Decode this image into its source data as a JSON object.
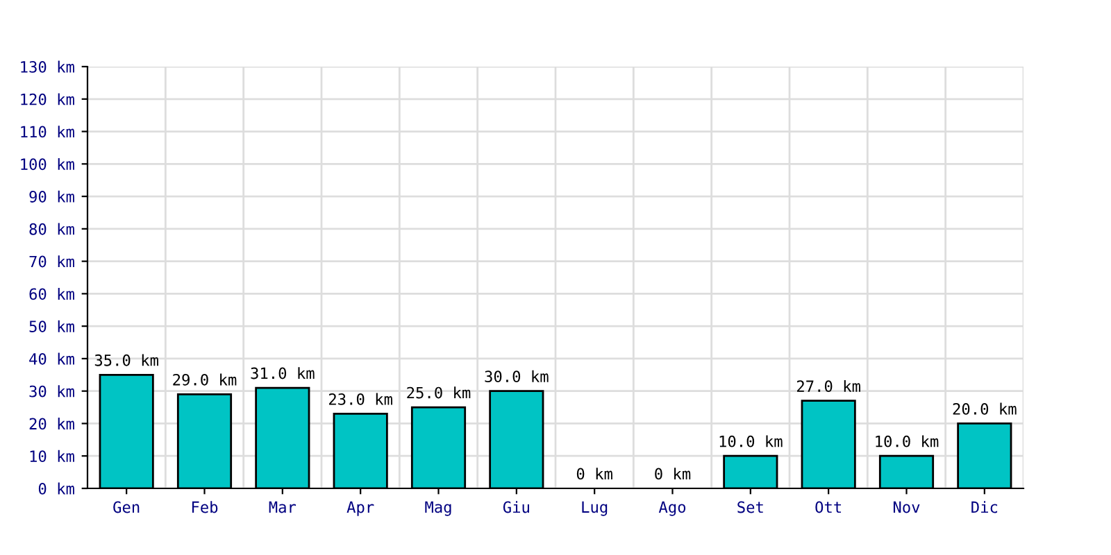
{
  "chart_data": {
    "type": "bar",
    "categories": [
      "Gen",
      "Feb",
      "Mar",
      "Apr",
      "Mag",
      "Giu",
      "Lug",
      "Ago",
      "Set",
      "Ott",
      "Nov",
      "Dic"
    ],
    "values": [
      35,
      29,
      31,
      23,
      25,
      30,
      0,
      0,
      10,
      27,
      10,
      20
    ],
    "color": "#00c4c4",
    "value_labels": [
      "35.0 km",
      "29.0 km",
      "31.0 km",
      "23.0 km",
      "25.0 km",
      "30.0 km",
      "0 km",
      "0 km",
      "10.0 km",
      "27.0 km",
      "10.0 km",
      "20.0 km"
    ],
    "ylim": [
      0,
      130
    ],
    "yticks": [
      {
        "value": 0,
        "label": "0 km"
      },
      {
        "value": 10,
        "label": "10 km"
      },
      {
        "value": 20,
        "label": "20 km"
      },
      {
        "value": 30,
        "label": "30 km"
      },
      {
        "value": 40,
        "label": "40 km"
      },
      {
        "value": 50,
        "label": "50 km"
      },
      {
        "value": 60,
        "label": "60 km"
      },
      {
        "value": 70,
        "label": "70 km"
      },
      {
        "value": 80,
        "label": "80 km"
      },
      {
        "value": 90,
        "label": "90 km"
      },
      {
        "value": 100,
        "label": "100 km"
      },
      {
        "value": 110,
        "label": "110 km"
      },
      {
        "value": 120,
        "label": "120 km"
      },
      {
        "value": 130,
        "label": "130 km"
      }
    ],
    "grid": true
  }
}
